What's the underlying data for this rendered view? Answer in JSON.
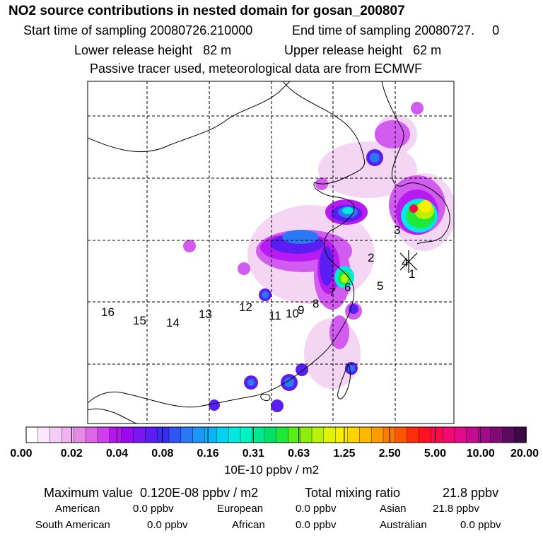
{
  "header": {
    "title": "NO2 source contributions in nested domain for gosan_200807",
    "start_label": "Start time of sampling 20080726.210000",
    "end_label": "End time of sampling 20080727.     0",
    "lower_label": "Lower release height   82 m",
    "upper_label": "Upper release height   62 m",
    "tracer_note": "Passive tracer used, meteorological data are from ECMWF"
  },
  "chart_data": {
    "type": "heatmap",
    "title": "NO2 source contributions in nested domain for gosan_200807",
    "colorbar": {
      "ticks": [
        "0.00",
        "0.02",
        "0.04",
        "0.08",
        "0.16",
        "0.31",
        "0.63",
        "1.25",
        "2.50",
        "5.00",
        "10.00",
        "20.00"
      ],
      "colors": [
        "#ffffff",
        "#fbe6fb",
        "#f6cdf6",
        "#f0b2f0",
        "#e58ae5",
        "#dd66e8",
        "#cf3fef",
        "#b815f2",
        "#9a0af0",
        "#7a16f2",
        "#5b1ef2",
        "#3a2cf4",
        "#2f55f4",
        "#2a78f6",
        "#1c96f8",
        "#08b4f6",
        "#00d2f0",
        "#00e8e0",
        "#00f2c0",
        "#00ea94",
        "#00e066",
        "#1ee83a",
        "#58ee1c",
        "#8af00c",
        "#b8f208",
        "#def404",
        "#f8ee00",
        "#fcd400",
        "#fcb800",
        "#fc9c00",
        "#fc7a00",
        "#fc5600",
        "#fc2e0a",
        "#fc1222",
        "#fc0a4a",
        "#f20a72",
        "#e00a8a",
        "#c40a92",
        "#a20a8a",
        "#820a78",
        "#5c0a60",
        "#3c0a44"
      ],
      "units": "10E-10 ppbv / m2"
    },
    "station_labels": [
      "1",
      "2",
      "3",
      "4",
      "5",
      "6",
      "7",
      "8",
      "9",
      "10",
      "11",
      "12",
      "13",
      "14",
      "15",
      "16"
    ]
  },
  "stats": {
    "max_label": "Maximum value  0.120E-08 ppbv / m2",
    "total_label": "Total mixing ratio",
    "total_value": "21.8 ppbv",
    "american_label": "American",
    "american_value": "0.0 ppbv",
    "european_label": "European",
    "european_value": "0.0 ppbv",
    "asian_label": "Asian",
    "asian_value": "21.8 ppbv",
    "south_american_label": "South American",
    "south_american_value": "0.0 ppbv",
    "african_label": "African",
    "african_value": "0.0 ppbv",
    "australian_label": "Australian",
    "australian_value": "0.0 ppbv"
  }
}
